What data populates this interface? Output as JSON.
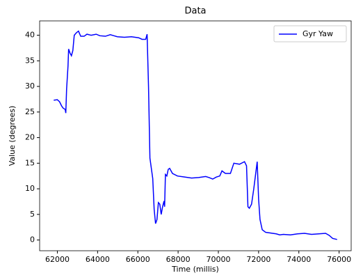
{
  "chart_data": {
    "type": "line",
    "title": "Data",
    "x_label": "Time (millis)",
    "y_label": "Value (degrees)",
    "x": [
      61820,
      62000,
      62110,
      62210,
      62280,
      62390,
      62420,
      62460,
      62530,
      62560,
      62630,
      62700,
      62770,
      62840,
      62950,
      63050,
      63160,
      63330,
      63470,
      63680,
      63930,
      64110,
      64390,
      64630,
      64810,
      64980,
      65330,
      65680,
      66040,
      66210,
      66390,
      66460,
      66530,
      66600,
      66740,
      66810,
      66880,
      66950,
      67020,
      67090,
      67160,
      67230,
      67300,
      67330,
      67370,
      67440,
      67510,
      67580,
      67720,
      67970,
      68320,
      68670,
      69020,
      69370,
      69540,
      69720,
      69900,
      70070,
      70180,
      70350,
      70600,
      70770,
      71050,
      71300,
      71400,
      71470,
      71540,
      71650,
      71760,
      71930,
      72000,
      72070,
      72180,
      72350,
      72700,
      72880,
      73050,
      73230,
      73580,
      73930,
      74280,
      74630,
      74980,
      75330,
      75510,
      75680,
      75900
    ],
    "series": [
      {
        "name": "Gyr Yaw",
        "color": "#0000ff",
        "values": [
          27.3,
          27.4,
          27,
          26.2,
          25.8,
          25.5,
          24.8,
          29.5,
          34,
          37.3,
          36.5,
          36,
          37,
          40,
          40.5,
          40.8,
          39.8,
          39.8,
          40.2,
          40,
          40.2,
          39.9,
          39.8,
          40.1,
          39.9,
          39.7,
          39.6,
          39.7,
          39.5,
          39.2,
          39.2,
          40.2,
          30,
          16,
          12,
          6,
          3.2,
          4,
          7.3,
          7,
          5,
          6.5,
          7.6,
          6.5,
          12.8,
          12.5,
          13.8,
          14,
          13,
          12.5,
          12.3,
          12.1,
          12.2,
          12.4,
          12.2,
          11.9,
          12.3,
          12.5,
          13.5,
          13,
          13,
          15,
          14.8,
          15.3,
          14.5,
          6.5,
          6.2,
          7,
          10,
          15.3,
          8,
          4,
          2,
          1.5,
          1.3,
          1.2,
          1,
          1.1,
          1,
          1.2,
          1.3,
          1.1,
          1.2,
          1.3,
          0.9,
          0.3,
          0.1
        ]
      }
    ],
    "xlim": [
      61120,
      76600
    ],
    "ylim": [
      -2.1,
      42.8
    ],
    "xticks": [
      62000,
      64000,
      66000,
      68000,
      70000,
      72000,
      74000,
      76000
    ],
    "yticks": [
      0,
      5,
      10,
      15,
      20,
      25,
      30,
      35,
      40
    ],
    "legend": "upper right"
  }
}
